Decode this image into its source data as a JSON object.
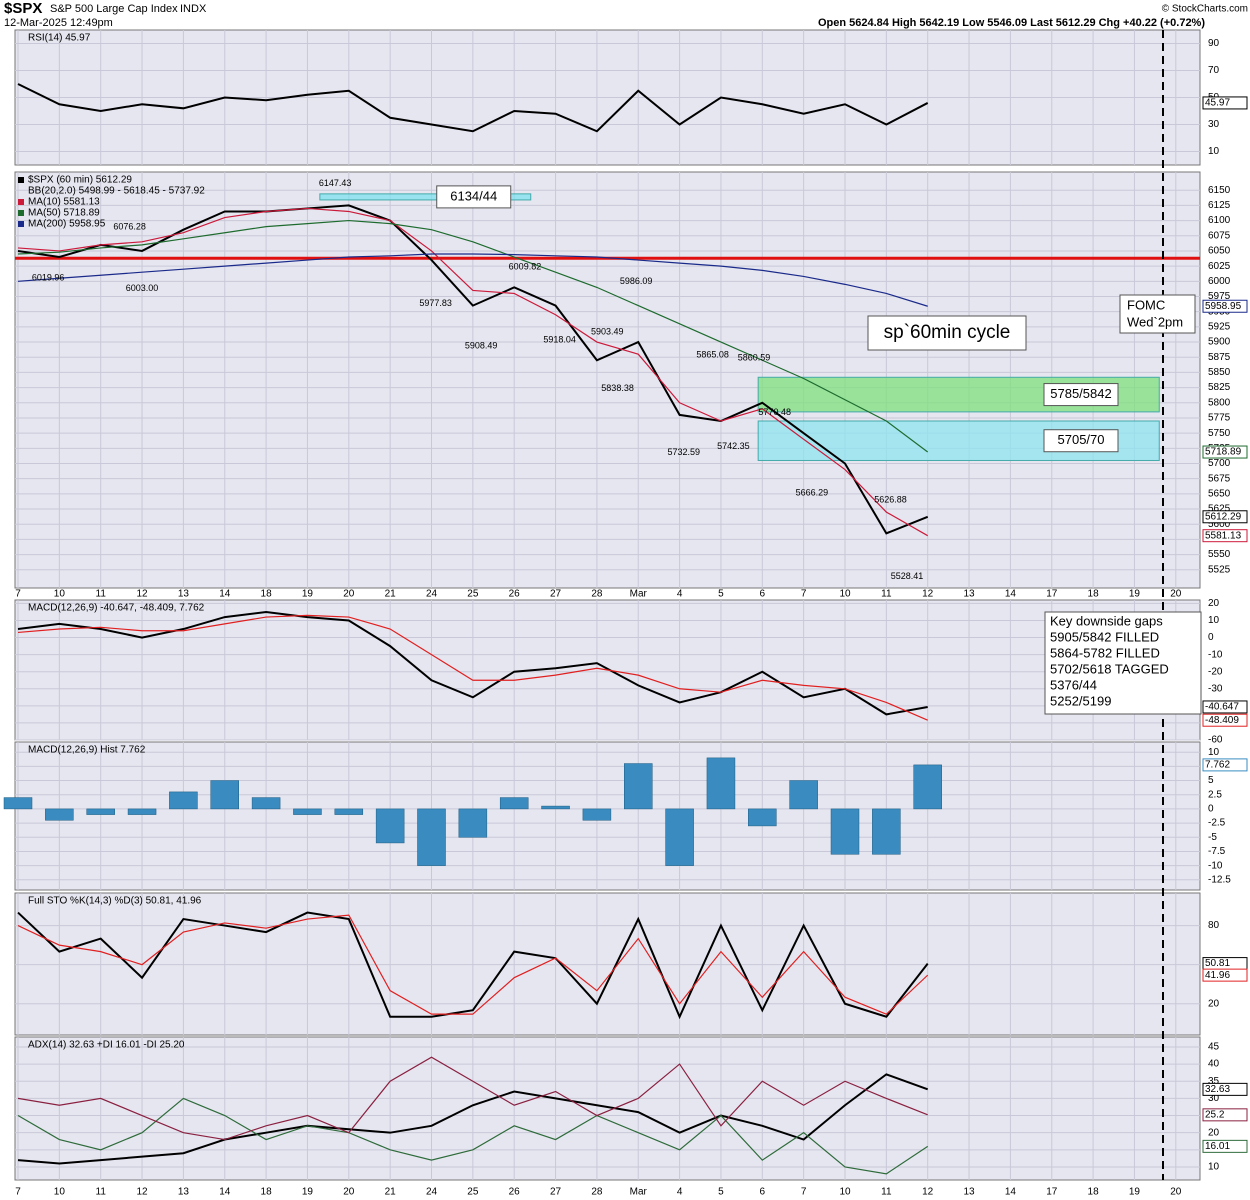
{
  "header": {
    "symbol": "$SPX",
    "name": "S&P 500 Large Cap Index",
    "exchange": "INDX",
    "datetime": "12-Mar-2025 12:49pm",
    "quote": "Open 5624.84  High 5642.19  Low 5546.09  Last 5612.29  Chg +40.22 (+0.72%)",
    "credit": "© StockCharts.com"
  },
  "categories": [
    "7",
    "10",
    "11",
    "12",
    "13",
    "14",
    "18",
    "19",
    "20",
    "21",
    "24",
    "25",
    "26",
    "27",
    "28",
    "Mar",
    "4",
    "5",
    "6",
    "7",
    "10",
    "11",
    "12",
    "13",
    "14",
    "17",
    "18",
    "19",
    "20"
  ],
  "annotations": {
    "cycle": "sp`60min cycle",
    "fomc": [
      "FOMC",
      "Wed`2pm"
    ]
  },
  "gaps_box": {
    "title": "Key downside gaps",
    "lines": [
      "5905/5842 FILLED",
      "5864-5782 FILLED",
      "5702/5618 TAGGED",
      "5376/44",
      "5252/5199"
    ]
  },
  "chart_data": [
    {
      "type": "line",
      "legend": "RSI(14) 45.97",
      "ylim": [
        0,
        100
      ],
      "yticks": [
        10,
        30,
        50,
        70,
        90
      ],
      "series": [
        {
          "color": "#000000",
          "values": [
            60,
            45,
            40,
            45,
            42,
            50,
            48,
            52,
            55,
            35,
            30,
            25,
            40,
            38,
            25,
            55,
            30,
            50,
            45,
            38,
            45,
            30,
            45.97,
            null,
            null,
            null,
            null,
            null,
            null
          ]
        }
      ]
    },
    {
      "type": "line",
      "ylim": [
        5495,
        6180
      ],
      "yticks": [
        5525,
        5550,
        5575,
        5600,
        5625,
        5650,
        5675,
        5700,
        5725,
        5750,
        5775,
        5800,
        5825,
        5850,
        5875,
        5900,
        5925,
        5950,
        5975,
        6000,
        6025,
        6050,
        6075,
        6100,
        6125,
        6150
      ],
      "legend": "BB(20,2.0) 5498.99 - 5618.45 - 5737.92",
      "series": [
        {
          "name": "$SPX (60 min) 5612.29",
          "color": "#000000",
          "values": [
            6050,
            6040,
            6060,
            6050,
            6085,
            6115,
            6115,
            6120,
            6125,
            6100,
            6035,
            5960,
            5990,
            5960,
            5870,
            5900,
            5780,
            5770,
            5800,
            5750,
            5700,
            5585,
            5612.29,
            null,
            null,
            null,
            null,
            null,
            null
          ]
        },
        {
          "name": "MA(10) 5581.13",
          "color": "#cc1a3a",
          "values": [
            6055,
            6050,
            6060,
            6065,
            6080,
            6105,
            6115,
            6120,
            6115,
            6100,
            6050,
            5985,
            5980,
            5945,
            5900,
            5880,
            5800,
            5770,
            5790,
            5740,
            5690,
            5620,
            5581.13,
            null,
            null,
            null,
            null,
            null,
            null
          ]
        },
        {
          "name": "MA(50) 5718.89",
          "color": "#1e6b2e",
          "values": [
            6045,
            6048,
            6055,
            6060,
            6070,
            6080,
            6090,
            6095,
            6100,
            6095,
            6085,
            6065,
            6040,
            6015,
            5990,
            5960,
            5930,
            5900,
            5870,
            5840,
            5805,
            5770,
            5718.89,
            null,
            null,
            null,
            null,
            null,
            null
          ]
        },
        {
          "name": "MA(200) 5958.95",
          "color": "#1a2a8a",
          "values": [
            6000,
            6005,
            6010,
            6015,
            6020,
            6025,
            6030,
            6035,
            6040,
            6042,
            6045,
            6045,
            6044,
            6042,
            6040,
            6035,
            6030,
            6025,
            6018,
            6008,
            5995,
            5980,
            5958.95,
            null,
            null,
            null,
            null,
            null,
            null
          ]
        }
      ],
      "hlines": [
        {
          "value": 6038,
          "color": "#e01010"
        }
      ],
      "zones": [
        {
          "label": "6134/44",
          "low": 6134,
          "high": 6144,
          "from": 7.3,
          "to": 12.4,
          "color": "#7fe0f0"
        },
        {
          "label": "5785/5842",
          "low": 5785,
          "high": 5842,
          "from": 17.9,
          "to": 27.6,
          "color": "#7ee07e"
        },
        {
          "label": "5705/70",
          "low": 5705,
          "high": 5770,
          "from": 17.9,
          "to": 27.6,
          "color": "#8fe4f0"
        }
      ],
      "highs": [
        {
          "x": 7.67,
          "value": 6147.43
        },
        {
          "x": 2.7,
          "value": 6076.28
        },
        {
          "x": 12.26,
          "value": 6009.82
        },
        {
          "x": 14.95,
          "value": 5986.09
        },
        {
          "x": 14.25,
          "value": 5903.49
        },
        {
          "x": 16.8,
          "value": 5865.08
        },
        {
          "x": 17.8,
          "value": 5860.59
        },
        {
          "x": 18.3,
          "value": 5770.48
        },
        {
          "x": 21.1,
          "value": 5626.88
        }
      ],
      "lows": [
        {
          "x": 0.73,
          "value": 6019.96
        },
        {
          "x": 3.0,
          "value": 6003,
          "label": "6003.00"
        },
        {
          "x": 10.1,
          "value": 5977.83
        },
        {
          "x": 11.2,
          "value": 5908.49
        },
        {
          "x": 13.1,
          "value": 5918.04
        },
        {
          "x": 14.5,
          "value": 5838.38
        },
        {
          "x": 16.1,
          "value": 5732.59
        },
        {
          "x": 17.3,
          "value": 5742.35
        },
        {
          "x": 19.2,
          "value": 5666.29
        },
        {
          "x": 21.5,
          "value": 5528.41
        }
      ]
    },
    {
      "type": "line",
      "legend": "MACD(12,26,9) -40.647, -48.409, 7.762",
      "ylim": [
        -60,
        22
      ],
      "yticks": [
        20,
        10,
        0,
        -10,
        -20,
        -30,
        -40,
        -50,
        -60
      ],
      "series": [
        {
          "color": "#000000",
          "values": [
            5,
            8,
            5,
            0,
            5,
            12,
            15,
            12,
            10,
            -5,
            -25,
            -35,
            -20,
            -18,
            -15,
            -28,
            -38,
            -32,
            -20,
            -35,
            -30,
            -45,
            -40.647,
            null,
            null,
            null,
            null,
            null,
            null
          ]
        },
        {
          "color": "#e02020",
          "values": [
            3,
            5,
            6,
            4,
            4,
            8,
            12,
            13,
            12,
            5,
            -10,
            -25,
            -25,
            -22,
            -18,
            -22,
            -30,
            -32,
            -25,
            -28,
            -30,
            -38,
            -48.409,
            null,
            null,
            null,
            null,
            null,
            null
          ]
        }
      ]
    },
    {
      "type": "bar",
      "legend": "MACD(12,26,9) Hist 7.762",
      "ylim": [
        -14.3,
        11.8
      ],
      "yticks": [
        10,
        7.5,
        5,
        2.5,
        0,
        -2.5,
        -5,
        -7.5,
        -10,
        -12.5
      ],
      "series": [
        {
          "color": "#3a8cc0",
          "values": [
            2,
            -2,
            -1,
            -1,
            3,
            5,
            2,
            -1,
            -1,
            -6,
            -10,
            -5,
            2,
            0.5,
            -2,
            8,
            -10,
            9,
            -3,
            5,
            -8,
            -8,
            7.762,
            null,
            null,
            null,
            null,
            null,
            null
          ]
        }
      ]
    },
    {
      "type": "line",
      "legend": "Full STO %K(14,3) %D(3) 50.81, 41.96",
      "ylim": [
        -4,
        105
      ],
      "yticks": [
        80,
        50,
        20
      ],
      "series": [
        {
          "color": "#000000",
          "values": [
            90,
            60,
            70,
            40,
            85,
            80,
            75,
            90,
            85,
            10,
            10,
            15,
            60,
            55,
            20,
            85,
            10,
            80,
            15,
            80,
            20,
            10,
            50.81,
            null,
            null,
            null,
            null,
            null,
            null
          ]
        },
        {
          "color": "#e02020",
          "values": [
            80,
            65,
            60,
            50,
            75,
            82,
            78,
            85,
            88,
            30,
            12,
            12,
            40,
            55,
            30,
            70,
            20,
            60,
            25,
            60,
            25,
            12,
            41.96,
            null,
            null,
            null,
            null,
            null,
            null
          ]
        }
      ]
    },
    {
      "type": "line",
      "legend": "ADX(14) 32.63 +DI 16.01 -DI 25.20",
      "ylim": [
        6.2,
        47.9
      ],
      "yticks": [
        10,
        15,
        20,
        25,
        30,
        35,
        40,
        45
      ],
      "series": [
        {
          "color": "#000000",
          "values": [
            12,
            11,
            12,
            13,
            14,
            18,
            20,
            22,
            21,
            20,
            22,
            28,
            32,
            30,
            28,
            26,
            20,
            25,
            22,
            18,
            28,
            37,
            32.63,
            null,
            null,
            null,
            null,
            null,
            null
          ]
        },
        {
          "color": "#2e6b3a",
          "values": [
            25,
            18,
            15,
            20,
            30,
            25,
            18,
            22,
            20,
            15,
            12,
            15,
            22,
            18,
            25,
            20,
            15,
            25,
            12,
            20,
            10,
            8,
            16.01,
            null,
            null,
            null,
            null,
            null,
            null
          ]
        },
        {
          "color": "#8a2040",
          "values": [
            30,
            28,
            30,
            25,
            20,
            18,
            22,
            25,
            20,
            35,
            42,
            35,
            28,
            32,
            25,
            30,
            40,
            22,
            35,
            28,
            35,
            30,
            25.2,
            null,
            null,
            null,
            null,
            null,
            null
          ]
        }
      ]
    }
  ]
}
